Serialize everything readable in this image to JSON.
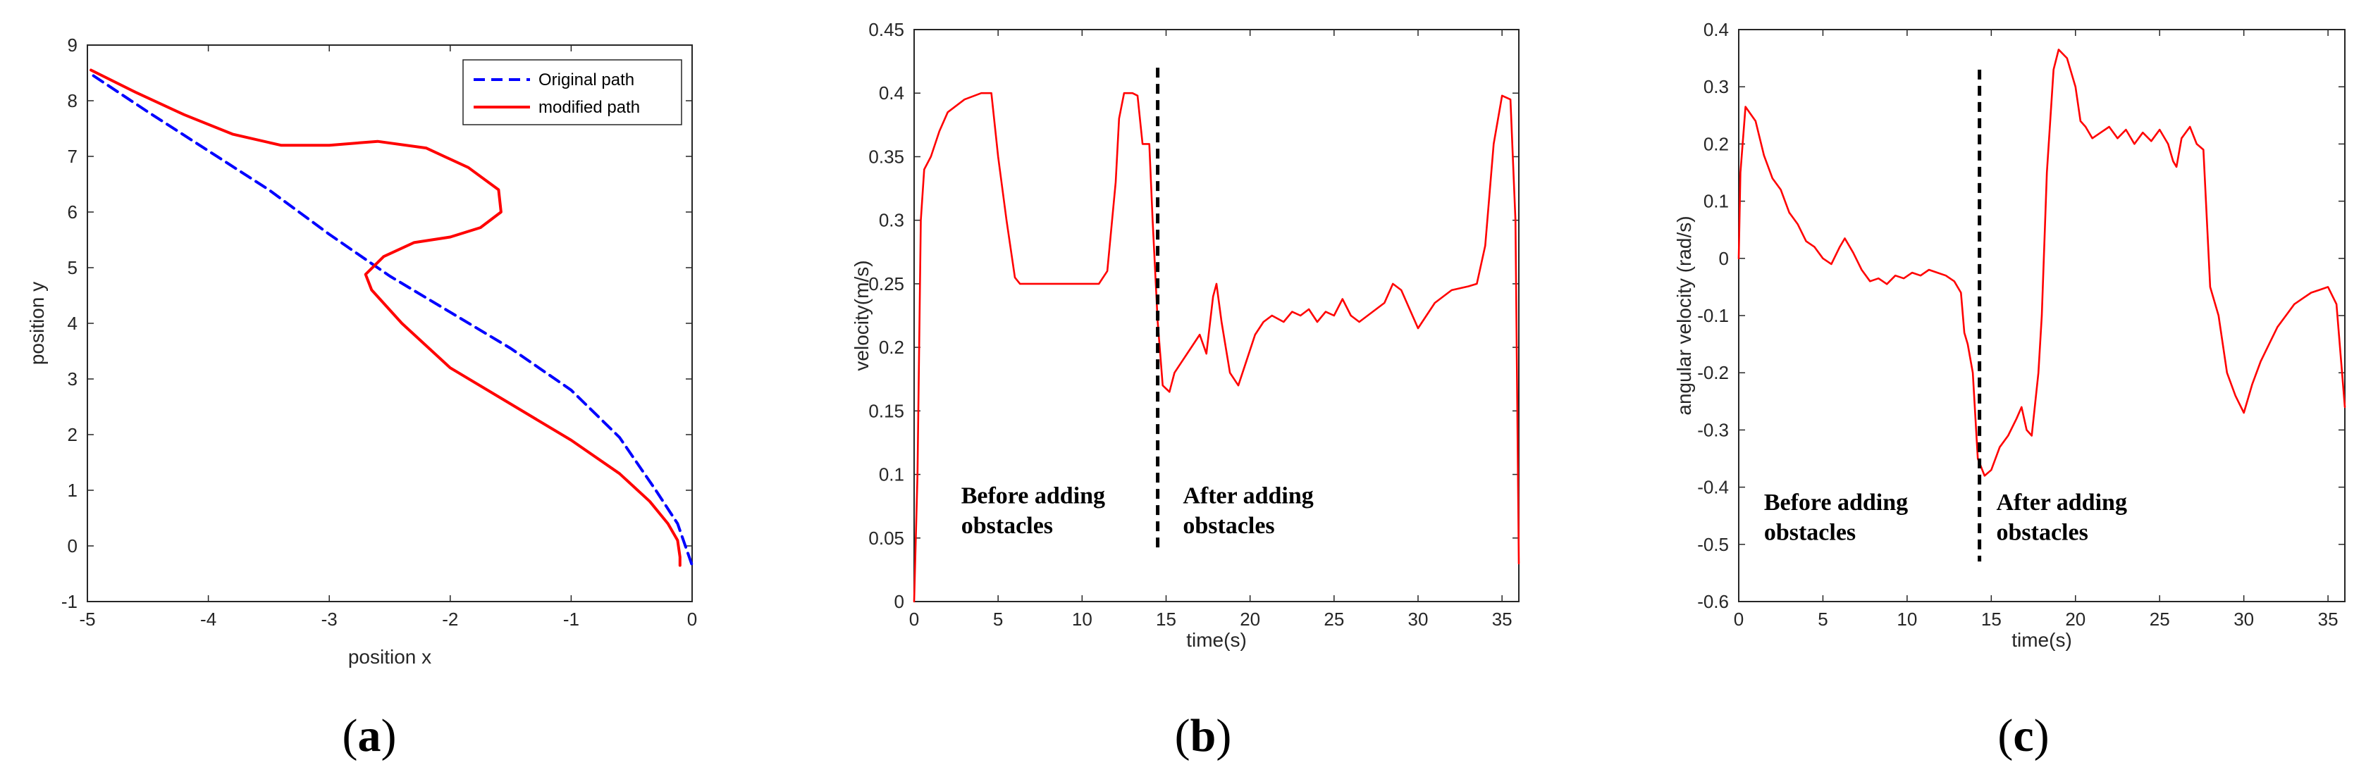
{
  "chart_data": [
    {
      "type": "line",
      "panel": "a",
      "xlabel": "position x",
      "ylabel": "position y",
      "xlim": [
        -5,
        0
      ],
      "ylim": [
        -1,
        9
      ],
      "xticks": [
        -5,
        -4,
        -3,
        -2,
        -1,
        0
      ],
      "yticks": [
        -1,
        0,
        1,
        2,
        3,
        4,
        5,
        6,
        7,
        8,
        9
      ],
      "legend_position": "top-right",
      "series": [
        {
          "name": "Original path",
          "color": "#0000ff",
          "style": "dashed",
          "points": [
            [
              -4.95,
              8.45
            ],
            [
              -4.5,
              7.8
            ],
            [
              -4.0,
              7.1
            ],
            [
              -3.5,
              6.4
            ],
            [
              -3.0,
              5.6
            ],
            [
              -2.5,
              4.85
            ],
            [
              -2.0,
              4.2
            ],
            [
              -1.5,
              3.55
            ],
            [
              -1.0,
              2.8
            ],
            [
              -0.6,
              1.95
            ],
            [
              -0.3,
              1.0
            ],
            [
              -0.12,
              0.4
            ],
            [
              0.0,
              -0.35
            ]
          ]
        },
        {
          "name": "modified path",
          "color": "#ff0000",
          "style": "solid",
          "points": [
            [
              -4.97,
              8.55
            ],
            [
              -4.6,
              8.15
            ],
            [
              -4.2,
              7.75
            ],
            [
              -3.8,
              7.4
            ],
            [
              -3.4,
              7.2
            ],
            [
              -3.0,
              7.2
            ],
            [
              -2.6,
              7.27
            ],
            [
              -2.2,
              7.15
            ],
            [
              -1.85,
              6.8
            ],
            [
              -1.6,
              6.4
            ],
            [
              -1.58,
              6.0
            ],
            [
              -1.75,
              5.72
            ],
            [
              -2.0,
              5.55
            ],
            [
              -2.3,
              5.45
            ],
            [
              -2.55,
              5.2
            ],
            [
              -2.7,
              4.88
            ],
            [
              -2.65,
              4.6
            ],
            [
              -2.4,
              4.0
            ],
            [
              -2.0,
              3.2
            ],
            [
              -1.5,
              2.55
            ],
            [
              -1.0,
              1.9
            ],
            [
              -0.6,
              1.3
            ],
            [
              -0.35,
              0.8
            ],
            [
              -0.2,
              0.4
            ],
            [
              -0.12,
              0.1
            ],
            [
              -0.1,
              -0.2
            ],
            [
              -0.1,
              -0.35
            ]
          ]
        }
      ]
    },
    {
      "type": "line",
      "panel": "b",
      "xlabel": "time(s)",
      "ylabel": "velocity(m/s)",
      "xlim": [
        0,
        36
      ],
      "ylim": [
        0,
        0.45
      ],
      "xticks": [
        0,
        5,
        10,
        15,
        20,
        25,
        30,
        35
      ],
      "yticks": [
        0,
        0.05,
        0.1,
        0.15,
        0.2,
        0.25,
        0.3,
        0.35,
        0.4,
        0.45
      ],
      "divider_x": 14.5,
      "divider_ylim": [
        0.04,
        0.42
      ],
      "annotations": [
        {
          "lines": [
            "Before adding",
            "obstacles"
          ],
          "x": 2.8,
          "y": 0.066
        },
        {
          "lines": [
            "After adding",
            "obstacles"
          ],
          "x": 16.0,
          "y": 0.066
        }
      ],
      "series": [
        {
          "name": "velocity",
          "color": "#ff0000",
          "points": [
            [
              0,
              0
            ],
            [
              0.2,
              0.1
            ],
            [
              0.4,
              0.3
            ],
            [
              0.6,
              0.34
            ],
            [
              1,
              0.35
            ],
            [
              1.5,
              0.37
            ],
            [
              2,
              0.385
            ],
            [
              3,
              0.395
            ],
            [
              4,
              0.4
            ],
            [
              4.6,
              0.4
            ],
            [
              5,
              0.35
            ],
            [
              5.5,
              0.3
            ],
            [
              6,
              0.255
            ],
            [
              6.3,
              0.25
            ],
            [
              7,
              0.25
            ],
            [
              8,
              0.25
            ],
            [
              9,
              0.25
            ],
            [
              10,
              0.25
            ],
            [
              11,
              0.25
            ],
            [
              11.5,
              0.26
            ],
            [
              12,
              0.33
            ],
            [
              12.2,
              0.38
            ],
            [
              12.5,
              0.4
            ],
            [
              13,
              0.4
            ],
            [
              13.3,
              0.398
            ],
            [
              13.6,
              0.36
            ],
            [
              14,
              0.36
            ],
            [
              14.2,
              0.3
            ],
            [
              14.5,
              0.22
            ],
            [
              14.8,
              0.17
            ],
            [
              15.2,
              0.165
            ],
            [
              15.5,
              0.18
            ],
            [
              16,
              0.19
            ],
            [
              16.5,
              0.2
            ],
            [
              17,
              0.21
            ],
            [
              17.4,
              0.195
            ],
            [
              17.8,
              0.24
            ],
            [
              18,
              0.25
            ],
            [
              18.3,
              0.22
            ],
            [
              18.8,
              0.18
            ],
            [
              19.3,
              0.17
            ],
            [
              19.8,
              0.19
            ],
            [
              20.3,
              0.21
            ],
            [
              20.8,
              0.22
            ],
            [
              21.3,
              0.225
            ],
            [
              22,
              0.22
            ],
            [
              22.5,
              0.228
            ],
            [
              23,
              0.225
            ],
            [
              23.5,
              0.23
            ],
            [
              24,
              0.22
            ],
            [
              24.5,
              0.228
            ],
            [
              25,
              0.225
            ],
            [
              25.5,
              0.238
            ],
            [
              26,
              0.225
            ],
            [
              26.5,
              0.22
            ],
            [
              27,
              0.225
            ],
            [
              27.5,
              0.23
            ],
            [
              28,
              0.235
            ],
            [
              28.5,
              0.25
            ],
            [
              29,
              0.245
            ],
            [
              29.5,
              0.23
            ],
            [
              30,
              0.215
            ],
            [
              30.5,
              0.225
            ],
            [
              31,
              0.235
            ],
            [
              31.5,
              0.24
            ],
            [
              32,
              0.245
            ],
            [
              33,
              0.248
            ],
            [
              33.5,
              0.25
            ],
            [
              34,
              0.28
            ],
            [
              34.5,
              0.36
            ],
            [
              35,
              0.398
            ],
            [
              35.5,
              0.395
            ],
            [
              35.8,
              0.3
            ],
            [
              36,
              0.03
            ]
          ]
        }
      ]
    },
    {
      "type": "line",
      "panel": "c",
      "xlabel": "time(s)",
      "ylabel": "angular velocity (rad/s)",
      "xlim": [
        0,
        36
      ],
      "ylim": [
        -0.6,
        0.4
      ],
      "xticks": [
        0,
        5,
        10,
        15,
        20,
        25,
        30,
        35
      ],
      "yticks": [
        -0.6,
        -0.5,
        -0.4,
        -0.3,
        -0.2,
        -0.1,
        0,
        0.1,
        0.2,
        0.3,
        0.4
      ],
      "divider_x": 14.3,
      "divider_ylim": [
        -0.53,
        0.33
      ],
      "annotations": [
        {
          "lines": [
            "Before adding",
            "obstacles"
          ],
          "x": 1.5,
          "y": -0.465
        },
        {
          "lines": [
            "After adding",
            "obstacles"
          ],
          "x": 15.3,
          "y": -0.465
        }
      ],
      "series": [
        {
          "name": "angular velocity",
          "color": "#ff0000",
          "points": [
            [
              0,
              0
            ],
            [
              0.1,
              0.15
            ],
            [
              0.4,
              0.265
            ],
            [
              1,
              0.24
            ],
            [
              1.5,
              0.18
            ],
            [
              2,
              0.14
            ],
            [
              2.5,
              0.12
            ],
            [
              3,
              0.08
            ],
            [
              3.5,
              0.06
            ],
            [
              4,
              0.03
            ],
            [
              4.5,
              0.02
            ],
            [
              5,
              0
            ],
            [
              5.5,
              -0.01
            ],
            [
              6,
              0.02
            ],
            [
              6.3,
              0.035
            ],
            [
              6.8,
              0.01
            ],
            [
              7.3,
              -0.02
            ],
            [
              7.8,
              -0.04
            ],
            [
              8.3,
              -0.035
            ],
            [
              8.8,
              -0.045
            ],
            [
              9.3,
              -0.03
            ],
            [
              9.8,
              -0.035
            ],
            [
              10.3,
              -0.025
            ],
            [
              10.8,
              -0.03
            ],
            [
              11.3,
              -0.02
            ],
            [
              11.8,
              -0.025
            ],
            [
              12.3,
              -0.03
            ],
            [
              12.8,
              -0.04
            ],
            [
              13.2,
              -0.06
            ],
            [
              13.4,
              -0.13
            ],
            [
              13.6,
              -0.15
            ],
            [
              13.9,
              -0.2
            ],
            [
              14.2,
              -0.35
            ],
            [
              14.6,
              -0.38
            ],
            [
              15,
              -0.37
            ],
            [
              15.5,
              -0.33
            ],
            [
              16,
              -0.31
            ],
            [
              16.5,
              -0.28
            ],
            [
              16.8,
              -0.26
            ],
            [
              17.1,
              -0.3
            ],
            [
              17.4,
              -0.31
            ],
            [
              17.8,
              -0.2
            ],
            [
              18,
              -0.1
            ],
            [
              18.3,
              0.15
            ],
            [
              18.7,
              0.33
            ],
            [
              19,
              0.365
            ],
            [
              19.5,
              0.35
            ],
            [
              20,
              0.3
            ],
            [
              20.3,
              0.24
            ],
            [
              20.6,
              0.23
            ],
            [
              21,
              0.21
            ],
            [
              21.5,
              0.22
            ],
            [
              22,
              0.23
            ],
            [
              22.5,
              0.21
            ],
            [
              23,
              0.225
            ],
            [
              23.5,
              0.2
            ],
            [
              24,
              0.22
            ],
            [
              24.5,
              0.205
            ],
            [
              25,
              0.225
            ],
            [
              25.5,
              0.2
            ],
            [
              25.8,
              0.17
            ],
            [
              26,
              0.16
            ],
            [
              26.3,
              0.21
            ],
            [
              26.8,
              0.23
            ],
            [
              27.2,
              0.2
            ],
            [
              27.6,
              0.19
            ],
            [
              28,
              -0.05
            ],
            [
              28.5,
              -0.1
            ],
            [
              29,
              -0.2
            ],
            [
              29.5,
              -0.24
            ],
            [
              30,
              -0.27
            ],
            [
              30.5,
              -0.22
            ],
            [
              31,
              -0.18
            ],
            [
              31.5,
              -0.15
            ],
            [
              32,
              -0.12
            ],
            [
              32.5,
              -0.1
            ],
            [
              33,
              -0.08
            ],
            [
              33.5,
              -0.07
            ],
            [
              34,
              -0.06
            ],
            [
              34.5,
              -0.055
            ],
            [
              35,
              -0.05
            ],
            [
              35.5,
              -0.08
            ],
            [
              36,
              -0.26
            ]
          ]
        }
      ]
    }
  ],
  "panel_labels": {
    "a": {
      "open": "(",
      "letter": "a",
      "close": ")"
    },
    "b": {
      "open": "(",
      "letter": "b",
      "close": ")"
    },
    "c": {
      "open": "(",
      "letter": "c",
      "close": ")"
    }
  }
}
